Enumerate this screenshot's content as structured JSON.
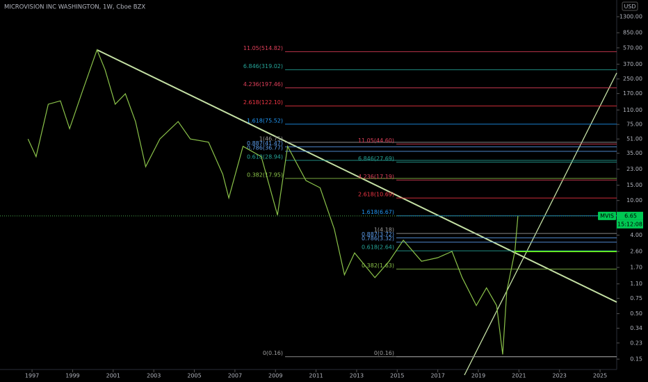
{
  "chart_data": {
    "type": "line",
    "title": "MICROVISION INC WASHINGTON, 1W, Cboe BZX",
    "currency": "USD",
    "symbol": "MVIS",
    "last_price": {
      "value": 6.65,
      "label": "6.65"
    },
    "countdown": "15:12:08",
    "log_scale": true,
    "color": "#8bc34a",
    "x": [
      1996.8,
      1997.2,
      1997.8,
      1998.4,
      1998.85,
      1999.5,
      2000.2,
      2000.6,
      2001.1,
      2001.6,
      2002.1,
      2002.6,
      2003.3,
      2004.2,
      2004.8,
      2005.7,
      2006.4,
      2006.7,
      2007.4,
      2008.3,
      2009.1,
      2009.6,
      2010.5,
      2011.2,
      2011.9,
      2012.4,
      2012.9,
      2013.9,
      2014.6,
      2015.3,
      2016.2,
      2017.0,
      2017.7,
      2018.2,
      2018.9,
      2019.4,
      2019.9,
      2020.2,
      2020.4,
      2020.8,
      2020.95
    ],
    "values": [
      51,
      32,
      128,
      140,
      67,
      185,
      540,
      320,
      128,
      169,
      81,
      24.5,
      51,
      81,
      51,
      47,
      20,
      10.7,
      42,
      32,
      6.8,
      42,
      17,
      14,
      4.7,
      1.4,
      2.5,
      1.3,
      2.0,
      3.5,
      2.0,
      2.2,
      2.6,
      1.3,
      0.62,
      0.99,
      0.62,
      0.17,
      0.91,
      2.6,
      6.65
    ],
    "xlim": [
      1995.42,
      2025.82
    ],
    "ylim": [
      0.114,
      2023
    ],
    "xticks": [
      1997,
      1999,
      2001,
      2003,
      2005,
      2007,
      2009,
      2011,
      2013,
      2015,
      2017,
      2019,
      2021,
      2023,
      2025
    ],
    "yticks": [
      {
        "value": 1300,
        "label": "1300.00"
      },
      {
        "value": 850,
        "label": "850.00"
      },
      {
        "value": 570,
        "label": "570.00"
      },
      {
        "value": 370,
        "label": "370.00"
      },
      {
        "value": 250,
        "label": "250.00"
      },
      {
        "value": 170,
        "label": "170.00"
      },
      {
        "value": 110,
        "label": "110.00"
      },
      {
        "value": 75,
        "label": "75.00"
      },
      {
        "value": 51,
        "label": "51.00"
      },
      {
        "value": 35,
        "label": "35.00"
      },
      {
        "value": 23,
        "label": "23.00"
      },
      {
        "value": 15,
        "label": "15.00"
      },
      {
        "value": 10,
        "label": "10.00"
      },
      {
        "value": 4,
        "label": "4.00"
      },
      {
        "value": 2.6,
        "label": "2.60"
      },
      {
        "value": 1.7,
        "label": "1.70"
      },
      {
        "value": 1.1,
        "label": "1.10"
      },
      {
        "value": 0.75,
        "label": "0.75"
      },
      {
        "value": 0.5,
        "label": "0.50"
      },
      {
        "value": 0.34,
        "label": "0.34"
      },
      {
        "value": 0.23,
        "label": "0.23"
      },
      {
        "value": 0.15,
        "label": "0.15"
      }
    ],
    "fib_sets": [
      {
        "levels": [
          {
            "label": "11.05(514.82)",
            "price": 514.82,
            "color": "#e0405a"
          },
          {
            "label": "6.846(319.02)",
            "price": 319.02,
            "color": "#26a69a"
          },
          {
            "label": "4.236(197.46)",
            "price": 197.46,
            "color": "#e0405a"
          },
          {
            "label": "2.618(122.10)",
            "price": 122.1,
            "color": "#f23645"
          },
          {
            "label": "1.618(75.52)",
            "price": 75.52,
            "color": "#2196f3"
          },
          {
            "label": "1(46.75)",
            "price": 46.75,
            "color": "#9e9e9e"
          },
          {
            "label": "0.887(41.47)",
            "price": 41.47,
            "color": "#5c9ded"
          },
          {
            "label": "0.786(36.77)",
            "price": 36.77,
            "color": "#5c9ded"
          },
          {
            "label": "0.618(28.94)",
            "price": 28.94,
            "color": "#26a69a"
          },
          {
            "label": "0.382(17.95)",
            "price": 17.95,
            "color": "#8bc34a"
          },
          {
            "label": "0(0.16)",
            "price": 0.16,
            "color": "#9e9e9e"
          }
        ]
      },
      {
        "levels": [
          {
            "label": "11.05(44.60)",
            "price": 44.6,
            "color": "#e0405a"
          },
          {
            "label": "6.846(27.69)",
            "price": 27.69,
            "color": "#26a69a"
          },
          {
            "label": "4.236(17.19)",
            "price": 17.19,
            "color": "#e0405a"
          },
          {
            "label": "2.618(10.69)",
            "price": 10.69,
            "color": "#f23645"
          },
          {
            "label": "1.618(6.67)",
            "price": 6.67,
            "color": "#2196f3"
          },
          {
            "label": "1(4.18)",
            "price": 4.18,
            "color": "#9e9e9e"
          },
          {
            "label": "0.887(3.72)",
            "price": 3.72,
            "color": "#5c9ded"
          },
          {
            "label": "0.786(3.32)",
            "price": 3.32,
            "color": "#5c9ded"
          },
          {
            "label": "0.618(2.64)",
            "price": 2.64,
            "color": "#26a69a"
          },
          {
            "label": "0.382(1.63)",
            "price": 1.63,
            "color": "#8bc34a"
          },
          {
            "label": "0(0.16)",
            "price": 0.16,
            "color": "#9e9e9e"
          }
        ]
      }
    ]
  }
}
